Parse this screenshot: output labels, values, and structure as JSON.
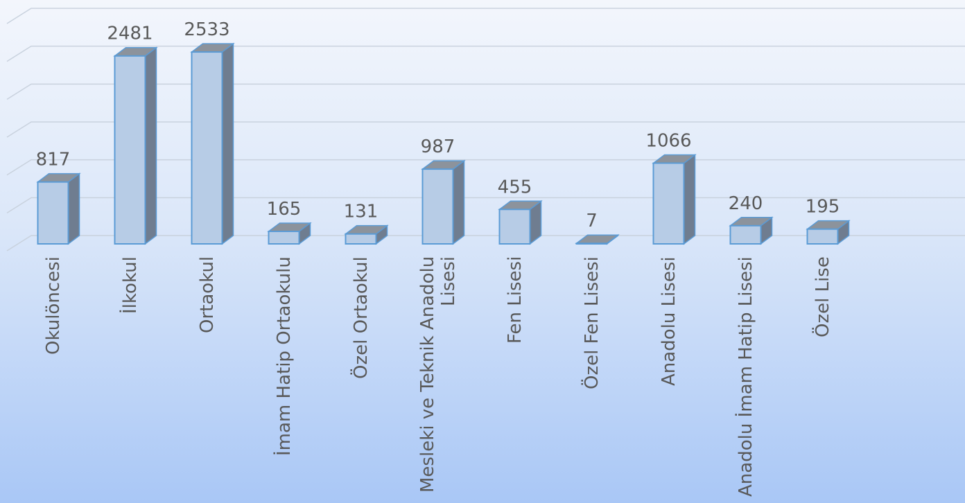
{
  "chart_data": {
    "type": "bar3d",
    "categories": [
      "Okulöncesi",
      "İlkokul",
      "Ortaokul",
      "İmam Hatip Ortaokulu",
      "Özel Ortaokul",
      "Mesleki ve Teknik Anadolu Lisesi",
      "Fen Lisesi",
      "Özel Fen Lisesi",
      "Anadolu Lisesi",
      "Anadolu İmam Hatip Lisesi",
      "Özel Lise"
    ],
    "values": [
      817,
      2481,
      2533,
      165,
      131,
      987,
      455,
      7,
      1066,
      240,
      195
    ],
    "color": "#b7cce6",
    "ylim": [
      0,
      3000
    ],
    "yticks": [
      0,
      500,
      1000,
      1500,
      2000,
      2500,
      3000
    ],
    "grid": true
  }
}
